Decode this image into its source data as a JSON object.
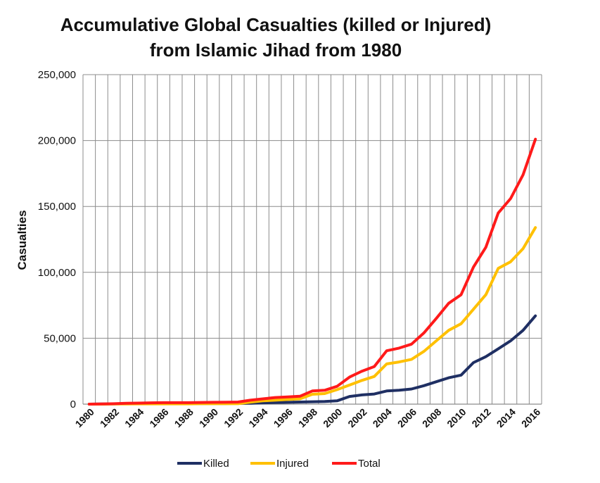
{
  "chart_data": {
    "type": "line",
    "title_line1": "Accumulative Global Casualties (killed or Injured)",
    "title_line2": "from Islamic Jihad from 1980",
    "xlabel": "",
    "ylabel": "Casualties",
    "ylim": [
      0,
      250000
    ],
    "y_ticks": [
      0,
      50000,
      100000,
      150000,
      200000,
      250000
    ],
    "y_tick_labels": [
      "0",
      "50,000",
      "100,000",
      "150,000",
      "200,000",
      "250,000"
    ],
    "x": [
      1980,
      1981,
      1982,
      1983,
      1984,
      1985,
      1986,
      1987,
      1988,
      1989,
      1990,
      1991,
      1992,
      1993,
      1994,
      1995,
      1996,
      1997,
      1998,
      1999,
      2000,
      2001,
      2002,
      2003,
      2004,
      2005,
      2006,
      2007,
      2008,
      2009,
      2010,
      2011,
      2012,
      2013,
      2014,
      2015,
      2016
    ],
    "x_tick_labels": [
      "1980",
      "1982",
      "1984",
      "1986",
      "1988",
      "1990",
      "1992",
      "1994",
      "1996",
      "1998",
      "2000",
      "2002",
      "2004",
      "2006",
      "2008",
      "2010",
      "2012",
      "2014",
      "2016"
    ],
    "grid": true,
    "legend_position": "bottom",
    "series": [
      {
        "name": "Killed",
        "color": "#1f2f63",
        "values": [
          0,
          100,
          200,
          300,
          300,
          400,
          400,
          400,
          400,
          500,
          500,
          500,
          600,
          700,
          1000,
          1200,
          1400,
          1600,
          1800,
          2000,
          2500,
          5800,
          7000,
          7700,
          10000,
          10500,
          11500,
          14000,
          17000,
          20000,
          22000,
          31500,
          36000,
          42000,
          48000,
          56000,
          67000
        ]
      },
      {
        "name": "Injured",
        "color": "#ffc000",
        "values": [
          0,
          0,
          100,
          100,
          200,
          200,
          200,
          200,
          200,
          300,
          300,
          300,
          300,
          1500,
          2500,
          3000,
          3500,
          4000,
          7500,
          8000,
          11000,
          14500,
          18000,
          21000,
          30500,
          32000,
          34000,
          40000,
          48000,
          56000,
          61000,
          72000,
          83000,
          103000,
          108000,
          118000,
          134000
        ]
      },
      {
        "name": "Total",
        "color": "#ff1a1a",
        "values": [
          0,
          100,
          300,
          700,
          800,
          1000,
          1100,
          1100,
          1100,
          1300,
          1400,
          1500,
          1600,
          3000,
          4000,
          5000,
          5500,
          6000,
          10000,
          10500,
          13500,
          20500,
          25000,
          28500,
          40500,
          42500,
          45500,
          54000,
          65000,
          76500,
          83000,
          104000,
          119000,
          145000,
          156000,
          174000,
          201000
        ]
      }
    ]
  }
}
